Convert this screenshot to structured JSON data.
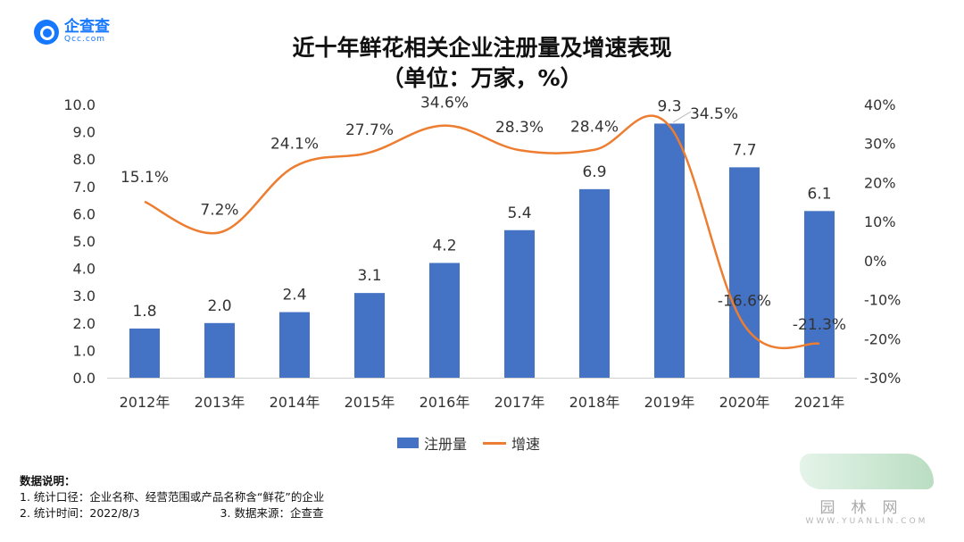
{
  "logo": {
    "name": "企查查",
    "domain": "Qcc.com"
  },
  "chart_data": {
    "type": "bar",
    "title": "近十年鲜花相关企业注册量及增速表现",
    "subtitle": "（单位：万家，%）",
    "categories": [
      "2012年",
      "2013年",
      "2014年",
      "2015年",
      "2016年",
      "2017年",
      "2018年",
      "2019年",
      "2020年",
      "2021年"
    ],
    "series": [
      {
        "name": "注册量",
        "type": "bar",
        "axis": "left",
        "values": [
          1.8,
          2.0,
          2.4,
          3.1,
          4.2,
          5.4,
          6.9,
          9.3,
          7.7,
          6.1
        ],
        "labels": [
          "1.8",
          "2.0",
          "2.4",
          "3.1",
          "4.2",
          "5.4",
          "6.9",
          "9.3",
          "7.7",
          "6.1"
        ]
      },
      {
        "name": "增速",
        "type": "line",
        "axis": "right",
        "values": [
          15.1,
          7.2,
          24.1,
          27.7,
          34.6,
          28.3,
          28.4,
          34.5,
          -16.6,
          -21.3
        ],
        "labels": [
          "15.1%",
          "7.2%",
          "24.1%",
          "27.7%",
          "34.6%",
          "28.3%",
          "28.4%",
          "34.5%",
          "-16.6%",
          "-21.3%"
        ]
      }
    ],
    "ylim_left": [
      0,
      10
    ],
    "yticks_left": [
      "0.0",
      "1.0",
      "2.0",
      "3.0",
      "4.0",
      "5.0",
      "6.0",
      "7.0",
      "8.0",
      "9.0",
      "10.0"
    ],
    "ylim_right": [
      -30,
      40
    ],
    "yticks_right": [
      "-30%",
      "-20%",
      "-10%",
      "0%",
      "10%",
      "20%",
      "30%",
      "40%"
    ],
    "legend": "bottom",
    "grid": false,
    "colors": {
      "bar": "#4472C4",
      "line": "#ED7D31"
    }
  },
  "notes": {
    "title": "数据说明：",
    "line1": "1. 统计口径：企业名称、经营范围或产品名称含“鲜花”的企业",
    "line2a": "2. 统计时间：2022/8/3",
    "line2b": "3. 数据来源：企查查"
  },
  "watermark": {
    "name": "园林网",
    "url": "WWW.YUANLIN.COM"
  }
}
